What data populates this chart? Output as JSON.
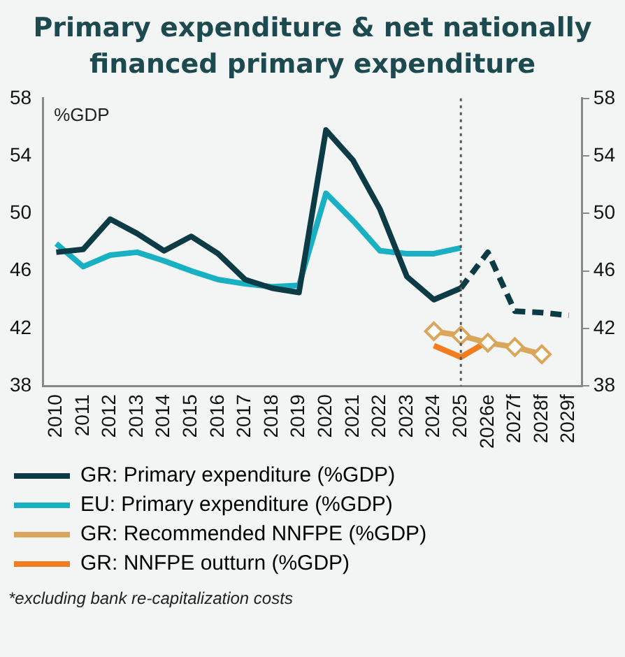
{
  "chart_data": {
    "type": "line",
    "title": "Primary expenditure & net nationally financed primary expenditure",
    "ylabel": "%GDP",
    "categories": [
      "2010",
      "2011",
      "2012",
      "2013",
      "2014",
      "2015",
      "2016",
      "2017",
      "2018",
      "2019",
      "2020",
      "2021",
      "2022",
      "2023",
      "2024",
      "2025",
      "2026e",
      "2027f",
      "2028f",
      "2029f"
    ],
    "series": [
      {
        "name": "GR: Primary expenditure (%GDP)",
        "color": "#0d3b45",
        "line_style": "solid",
        "marker": "none",
        "values": [
          47.3,
          47.5,
          49.6,
          48.6,
          47.4,
          48.4,
          47.2,
          45.4,
          44.8,
          44.5,
          55.8,
          53.7,
          50.3,
          45.6,
          44.0,
          44.8,
          null,
          null,
          null,
          null
        ]
      },
      {
        "color": "#0d3b45",
        "line_style": "dashed",
        "marker": "none",
        "values": [
          null,
          null,
          null,
          null,
          null,
          null,
          null,
          null,
          null,
          null,
          null,
          null,
          null,
          null,
          null,
          44.8,
          47.3,
          43.2,
          43.1,
          42.9
        ]
      },
      {
        "name": "EU: Primary expenditure (%GDP)",
        "color": "#1ab0c4",
        "line_style": "solid",
        "marker": "none",
        "values": [
          47.9,
          46.3,
          47.1,
          47.3,
          46.7,
          46.0,
          45.4,
          45.1,
          44.9,
          45.0,
          51.4,
          49.5,
          47.4,
          47.2,
          47.2,
          47.6,
          null,
          null,
          null,
          null
        ]
      },
      {
        "name": "GR: Recommended NNFPE (%GDP)",
        "color": "#d9a65b",
        "line_style": "solid",
        "marker": "diamond",
        "values": [
          null,
          null,
          null,
          null,
          null,
          null,
          null,
          null,
          null,
          null,
          null,
          null,
          null,
          null,
          41.8,
          41.5,
          41.0,
          40.7,
          40.2,
          null
        ]
      },
      {
        "name": "GR: NNFPE outturn (%GDP)",
        "color": "#f47c20",
        "line_style": "solid",
        "marker": "none",
        "values": [
          null,
          null,
          null,
          null,
          null,
          null,
          null,
          null,
          null,
          null,
          null,
          null,
          null,
          null,
          40.8,
          40.0,
          41.1,
          null,
          null,
          null
        ]
      }
    ],
    "ylim": [
      38,
      58
    ],
    "yticks": [
      38,
      42,
      46,
      50,
      54,
      58
    ],
    "y2lim": [
      38,
      58
    ],
    "y2ticks": [
      38,
      42,
      46,
      50,
      54,
      58
    ],
    "grid": false,
    "legend": "bottom",
    "ref_lines": [
      {
        "axis": "x",
        "value": "2025",
        "color": "#555555",
        "line_style": "dotted"
      }
    ],
    "annotations": [
      "*excluding bank re-capitalization costs"
    ]
  }
}
